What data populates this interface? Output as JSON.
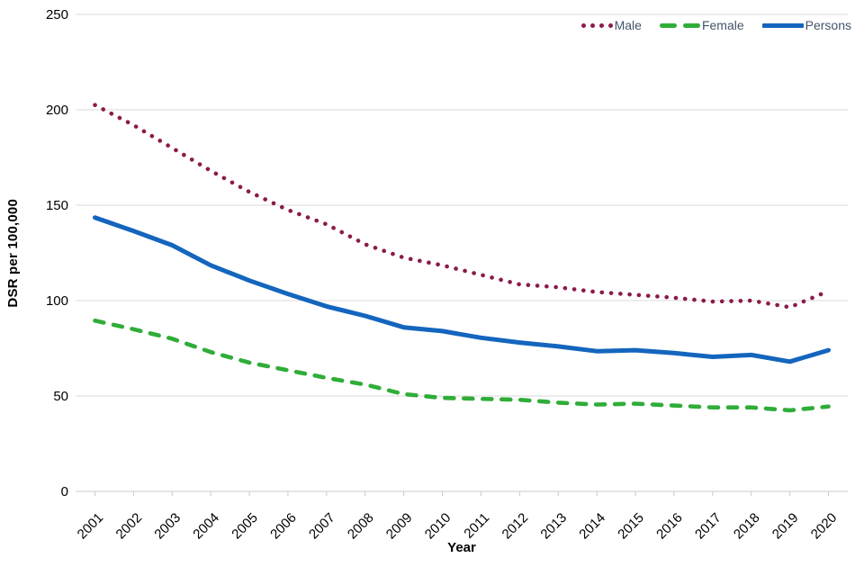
{
  "colors": {
    "male": "#8b1a4a",
    "female": "#2fad38",
    "persons": "#1465bd",
    "gridline": "#d9d9d9",
    "axis_line": "#c9c9c9",
    "tick_label": "#000000",
    "axis_title": "#000000",
    "legend_text": "#44546a",
    "background": "#ffffff"
  },
  "chart_data": {
    "type": "line",
    "xlabel": "Year",
    "ylabel": "DSR per 100,000",
    "x": [
      2001,
      2002,
      2003,
      2004,
      2005,
      2006,
      2007,
      2008,
      2009,
      2010,
      2011,
      2012,
      2013,
      2014,
      2015,
      2016,
      2017,
      2018,
      2019,
      2020
    ],
    "ylim": [
      0,
      250
    ],
    "yticks": [
      0,
      50,
      100,
      150,
      200,
      250
    ],
    "grid": true,
    "legend_position": "top-right",
    "series": [
      {
        "name": "Male",
        "style": "dotted",
        "color": "#8b1a4a",
        "values": [
          202.5,
          192,
          180,
          168,
          157,
          147.5,
          140,
          129.5,
          122.5,
          118.5,
          113.5,
          108.5,
          107,
          104.5,
          103,
          101.5,
          99.5,
          100,
          96.5,
          105
        ]
      },
      {
        "name": "Female",
        "style": "dashed",
        "color": "#2fad38",
        "values": [
          89.5,
          85,
          80,
          73,
          67.5,
          63.5,
          59.5,
          56,
          51,
          49,
          48.5,
          48,
          46.5,
          45.5,
          46,
          45,
          44,
          44,
          42.5,
          44.5
        ]
      },
      {
        "name": "Persons",
        "style": "solid",
        "color": "#1465bd",
        "values": [
          143.5,
          136.5,
          129,
          118.5,
          110.5,
          103.5,
          97,
          92,
          86,
          84,
          80.5,
          78,
          76,
          73.5,
          74,
          72.5,
          70.5,
          71.5,
          68,
          74
        ]
      }
    ]
  }
}
